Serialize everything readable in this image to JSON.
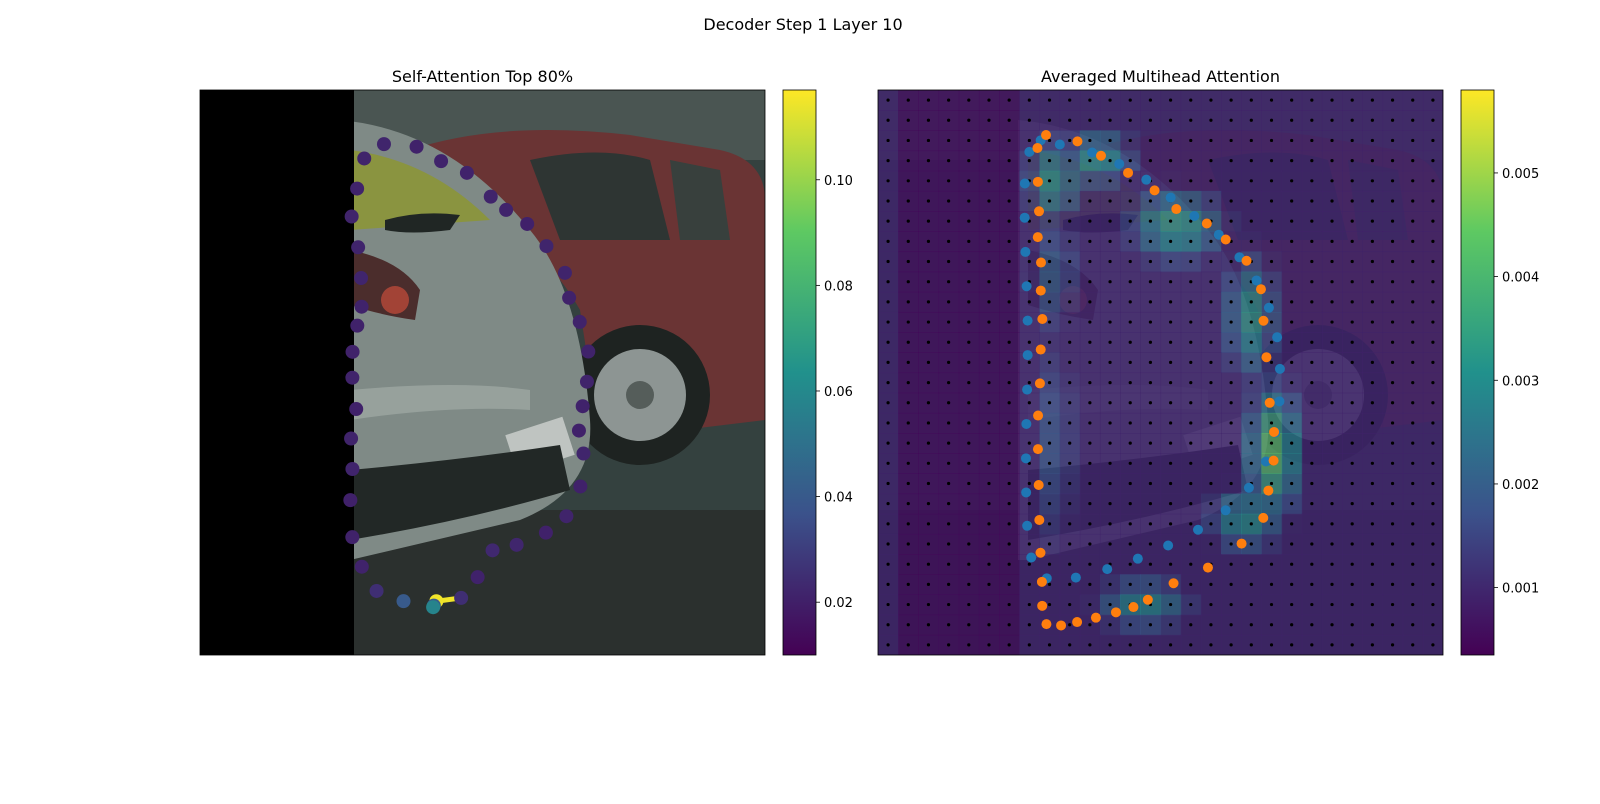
{
  "figure": {
    "title": "Decoder Step 1 Layer 10"
  },
  "colors": {
    "viridis_dark": "#440154",
    "viridis_blue": "#3b528b",
    "viridis_teal": "#21918c",
    "viridis_green": "#5ec962",
    "viridis_yellow": "#fde725",
    "predicted_points": "#ff7f0e",
    "reference_points": "#1f77b4",
    "grid_dots": "#000000"
  },
  "chart_data": [
    {
      "type": "scatter",
      "title": "Self-Attention Top 80%",
      "background": "masked image crop of parked cars (left strip masked black)",
      "colorbar": {
        "min": 0.01,
        "max": 0.117,
        "ticks": [
          0.02,
          0.04,
          0.06,
          0.08,
          0.1
        ],
        "tick_labels": [
          "0.02",
          "0.04",
          "0.06",
          "0.08",
          "0.10"
        ],
        "cmap": "viridis"
      },
      "contour_points": [
        [
          0.2907,
          0.1212,
          0.0214
        ],
        [
          0.3256,
          0.0958,
          0.0218
        ],
        [
          0.3833,
          0.1004,
          0.0208
        ],
        [
          0.4267,
          0.1259,
          0.0212
        ],
        [
          0.4724,
          0.1466,
          0.0212
        ],
        [
          0.5146,
          0.1887,
          0.0214
        ],
        [
          0.5418,
          0.2122,
          0.0212
        ],
        [
          0.5791,
          0.2371,
          0.0206
        ],
        [
          0.6132,
          0.2763,
          0.0219
        ],
        [
          0.6459,
          0.3236,
          0.0215
        ],
        [
          0.6533,
          0.3678,
          0.0208
        ],
        [
          0.6721,
          0.4105,
          0.0212
        ],
        [
          0.6873,
          0.4629,
          0.0213
        ],
        [
          0.6849,
          0.5163,
          0.0214
        ],
        [
          0.6773,
          0.5597,
          0.021
        ],
        [
          0.6707,
          0.6028,
          0.0207
        ],
        [
          0.6787,
          0.6434,
          0.0219
        ],
        [
          0.6732,
          0.7017,
          0.0207
        ],
        [
          0.6485,
          0.7544,
          0.0214
        ],
        [
          0.6122,
          0.7835,
          0.0205
        ],
        [
          0.5604,
          0.805,
          0.0222
        ],
        [
          0.5178,
          0.8148,
          0.023
        ],
        [
          0.4914,
          0.8622,
          0.021
        ],
        [
          0.4622,
          0.899,
          0.025
        ],
        [
          0.4183,
          0.9048,
          0.115
        ],
        [
          0.4138,
          0.9125,
          0.04
        ],
        [
          0.4126,
          0.9154,
          0.058
        ],
        [
          0.3602,
          0.9047,
          0.04
        ],
        [
          0.3125,
          0.8867,
          0.025
        ],
        [
          0.2864,
          0.8437,
          0.0213
        ],
        [
          0.2696,
          0.7914,
          0.0209
        ],
        [
          0.2661,
          0.7259,
          0.0206
        ],
        [
          0.2698,
          0.6708,
          0.0215
        ],
        [
          0.2674,
          0.6168,
          0.0214
        ],
        [
          0.2765,
          0.5647,
          0.0207
        ],
        [
          0.2697,
          0.5092,
          0.0212
        ],
        [
          0.27,
          0.4634,
          0.0208
        ],
        [
          0.2784,
          0.4171,
          0.0208
        ],
        [
          0.286,
          0.3836,
          0.0213
        ],
        [
          0.2851,
          0.3328,
          0.022
        ],
        [
          0.2799,
          0.2784,
          0.0215
        ],
        [
          0.2684,
          0.2239,
          0.0214
        ],
        [
          0.2781,
          0.1745,
          0.0213
        ]
      ],
      "highlight_edge": {
        "from": 23,
        "to": 26
      }
    },
    {
      "type": "heatmap",
      "title": "Averaged Multihead Attention",
      "background": "same image crop of parked cars, dimmed under attention overlay",
      "grid": {
        "rows": 28,
        "cols": 28
      },
      "colorbar": {
        "min": 0.00035,
        "max": 0.0058,
        "ticks": [
          0.001,
          0.002,
          0.003,
          0.004,
          0.005
        ],
        "tick_labels": [
          "0.001",
          "0.002",
          "0.003",
          "0.004",
          "0.005"
        ],
        "cmap": "viridis"
      },
      "heat_blobs": [
        {
          "x": 0.31,
          "y": 0.16,
          "rx": 0.05,
          "ry": 0.08,
          "v": 0.0032
        },
        {
          "x": 0.39,
          "y": 0.12,
          "rx": 0.07,
          "ry": 0.05,
          "v": 0.0034
        },
        {
          "x": 0.53,
          "y": 0.24,
          "rx": 0.09,
          "ry": 0.07,
          "v": 0.0036
        },
        {
          "x": 0.66,
          "y": 0.4,
          "rx": 0.05,
          "ry": 0.12,
          "v": 0.0034
        },
        {
          "x": 0.7,
          "y": 0.64,
          "rx": 0.05,
          "ry": 0.12,
          "v": 0.0045
        },
        {
          "x": 0.65,
          "y": 0.76,
          "rx": 0.07,
          "ry": 0.06,
          "v": 0.0033
        },
        {
          "x": 0.47,
          "y": 0.91,
          "rx": 0.09,
          "ry": 0.05,
          "v": 0.0031
        },
        {
          "x": 0.31,
          "y": 0.63,
          "rx": 0.05,
          "ry": 0.24,
          "v": 0.0019
        },
        {
          "x": 0.31,
          "y": 0.33,
          "rx": 0.05,
          "ry": 0.12,
          "v": 0.0022
        }
      ],
      "predicted_points": [
        [
          0.2974,
          0.0797
        ],
        [
          0.2822,
          0.1027
        ],
        [
          0.353,
          0.0909
        ],
        [
          0.3947,
          0.1164
        ],
        [
          0.4426,
          0.1466
        ],
        [
          0.4895,
          0.1777
        ],
        [
          0.528,
          0.2107
        ],
        [
          0.582,
          0.2363
        ],
        [
          0.6155,
          0.2646
        ],
        [
          0.6523,
          0.3022
        ],
        [
          0.6778,
          0.3526
        ],
        [
          0.6823,
          0.4084
        ],
        [
          0.6875,
          0.4729
        ],
        [
          0.6933,
          0.5536
        ],
        [
          0.701,
          0.6052
        ],
        [
          0.7002,
          0.656
        ],
        [
          0.6909,
          0.709
        ],
        [
          0.6819,
          0.7573
        ],
        [
          0.6435,
          0.8028
        ],
        [
          0.584,
          0.8453
        ],
        [
          0.5231,
          0.873
        ],
        [
          0.4776,
          0.9022
        ],
        [
          0.4521,
          0.9151
        ],
        [
          0.4212,
          0.9245
        ],
        [
          0.3857,
          0.9339
        ],
        [
          0.3524,
          0.9417
        ],
        [
          0.324,
          0.9477
        ],
        [
          0.2981,
          0.9454
        ],
        [
          0.2906,
          0.913
        ],
        [
          0.2901,
          0.8705
        ],
        [
          0.2876,
          0.819
        ],
        [
          0.2855,
          0.7611
        ],
        [
          0.2844,
          0.6991
        ],
        [
          0.2831,
          0.6356
        ],
        [
          0.2833,
          0.5762
        ],
        [
          0.2866,
          0.5193
        ],
        [
          0.288,
          0.4594
        ],
        [
          0.2909,
          0.4053
        ],
        [
          0.2881,
          0.355
        ],
        [
          0.2885,
          0.3054
        ],
        [
          0.2828,
          0.2604
        ],
        [
          0.285,
          0.2147
        ],
        [
          0.283,
          0.1625
        ]
      ],
      "reference_points": [
        [
          0.2879,
          0.0891
        ],
        [
          0.3218,
          0.0965
        ],
        [
          0.379,
          0.1107
        ],
        [
          0.427,
          0.1309
        ],
        [
          0.4749,
          0.1587
        ],
        [
          0.518,
          0.1905
        ],
        [
          0.5598,
          0.223
        ],
        [
          0.6032,
          0.2561
        ],
        [
          0.6397,
          0.2961
        ],
        [
          0.6699,
          0.3371
        ],
        [
          0.6919,
          0.3854
        ],
        [
          0.7064,
          0.4375
        ],
        [
          0.7114,
          0.4936
        ],
        [
          0.7105,
          0.551
        ],
        [
          0.7031,
          0.6062
        ],
        [
          0.6867,
          0.6575
        ],
        [
          0.6565,
          0.704
        ],
        [
          0.6153,
          0.7439
        ],
        [
          0.5664,
          0.7783
        ],
        [
          0.5135,
          0.8062
        ],
        [
          0.4599,
          0.8295
        ],
        [
          0.4057,
          0.848
        ],
        [
          0.3502,
          0.863
        ],
        [
          0.2987,
          0.8643
        ],
        [
          0.2712,
          0.8274
        ],
        [
          0.264,
          0.7713
        ],
        [
          0.2622,
          0.7123
        ],
        [
          0.2619,
          0.6519
        ],
        [
          0.2626,
          0.5911
        ],
        [
          0.2639,
          0.5302
        ],
        [
          0.2649,
          0.4692
        ],
        [
          0.2648,
          0.4082
        ],
        [
          0.263,
          0.3473
        ],
        [
          0.2609,
          0.2866
        ],
        [
          0.2596,
          0.226
        ],
        [
          0.2599,
          0.1655
        ],
        [
          0.2679,
          0.1095
        ]
      ]
    }
  ]
}
